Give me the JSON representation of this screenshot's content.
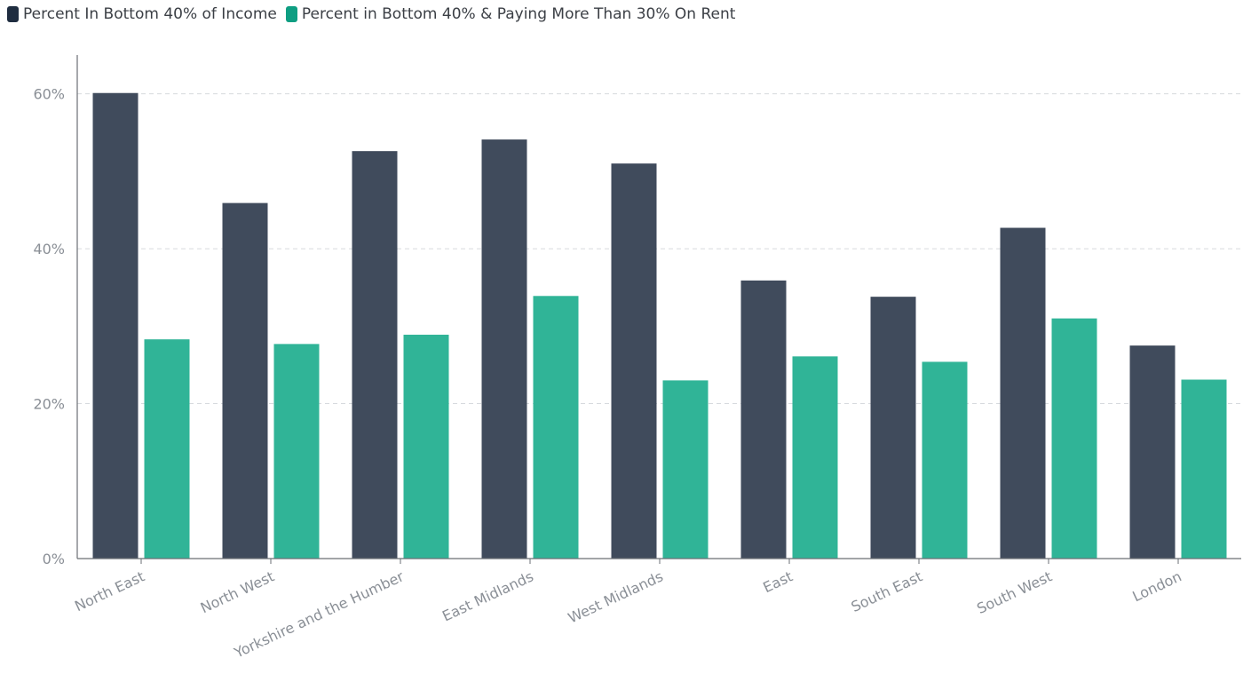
{
  "chart_data": {
    "type": "bar",
    "categories": [
      "North East",
      "North West",
      "Yorkshire and the Humber",
      "East Midlands",
      "West Midlands",
      "East",
      "South East",
      "South West",
      "London"
    ],
    "series": [
      {
        "name": "Percent In Bottom 40% of Income",
        "color": "#404b5c",
        "values": [
          60.1,
          45.9,
          52.6,
          54.1,
          51.0,
          35.9,
          33.8,
          42.7,
          27.5
        ]
      },
      {
        "name": "Percent in Bottom 40% & Paying More Than 30% On Rent",
        "color": "#30b497",
        "values": [
          28.3,
          27.7,
          28.9,
          33.9,
          23.0,
          26.1,
          25.4,
          31.0,
          23.1
        ]
      }
    ],
    "yticks": [
      "0%",
      "20%",
      "40%",
      "60%"
    ],
    "ylim": [
      0,
      65
    ],
    "grid": true,
    "legend": "top-left",
    "legend_colors": [
      "#1f2d40",
      "#0e9e82"
    ]
  }
}
